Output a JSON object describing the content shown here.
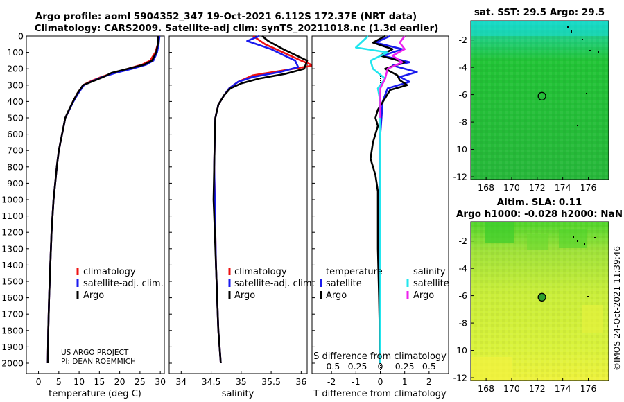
{
  "header": {
    "line1": "Argo profile: aoml 5904352_347 19-Oct-2021 6.112S 172.37E (NRT data)",
    "line2": "Climatology: CARS2009. Satellite-adj clim: synTS_20211018.nc (1.3d earlier)"
  },
  "credit": {
    "project": "US ARGO PROJECT",
    "pi": "PI: DEAN ROEMMICH"
  },
  "stamp": "©IMOS 24-Oct-2021 11:39:46",
  "legend": {
    "clim": "climatology",
    "sat": "satellite-adj. clim.",
    "argo": "Argo",
    "temperature": "temperature",
    "salinity": "salinity",
    "satellite": "satellite"
  },
  "colors": {
    "clim": "#ee1111",
    "sat": "#1a1aee",
    "argo": "#000000",
    "cyan": "#22e6ee",
    "magenta": "#ee22ee"
  },
  "chart_data": [
    {
      "type": "line",
      "title": "",
      "xlabel": "temperature (deg C)",
      "ylabel": "",
      "xlim": [
        -3,
        31
      ],
      "ylim": [
        2050,
        0
      ],
      "xticks": [
        0,
        5,
        10,
        15,
        20,
        25,
        30
      ],
      "yticks": [
        0,
        100,
        200,
        300,
        400,
        500,
        600,
        700,
        800,
        900,
        1000,
        1100,
        1200,
        1300,
        1400,
        1500,
        1600,
        1700,
        1800,
        1900,
        2000
      ],
      "series": [
        {
          "name": "climatology",
          "key": "clim",
          "x": [
            29.6,
            29.4,
            28.8,
            27.5,
            25.5,
            22.0,
            18.5,
            15.5,
            13.0,
            11.0,
            9.6,
            8.5,
            7.6,
            6.6,
            5.8,
            5.0,
            4.5,
            4.1,
            3.7,
            3.2,
            2.9,
            2.6,
            2.4,
            2.3
          ],
          "y": [
            0,
            50,
            100,
            150,
            175,
            200,
            225,
            250,
            275,
            300,
            350,
            400,
            450,
            500,
            600,
            700,
            800,
            900,
            1000,
            1200,
            1400,
            1600,
            1800,
            2000
          ]
        },
        {
          "name": "satellite-adj. clim.",
          "key": "sat",
          "x": [
            29.8,
            29.6,
            29.2,
            28.3,
            26.5,
            23.0,
            19.0,
            15.8,
            13.3,
            11.2,
            9.8,
            8.6,
            7.6,
            6.6,
            5.8,
            5.0,
            4.5,
            4.1,
            3.7,
            3.2,
            2.9,
            2.6,
            2.4,
            2.3
          ],
          "y": [
            0,
            50,
            100,
            150,
            175,
            200,
            225,
            250,
            275,
            300,
            350,
            400,
            450,
            500,
            600,
            700,
            800,
            900,
            1000,
            1200,
            1400,
            1600,
            1800,
            2000
          ]
        },
        {
          "name": "Argo",
          "key": "argo",
          "x": [
            29.5,
            29.4,
            29.0,
            28.0,
            26.0,
            22.0,
            18.0,
            16.0,
            13.5,
            11.0,
            9.6,
            8.5,
            7.5,
            6.6,
            5.8,
            5.0,
            4.5,
            4.1,
            3.7,
            3.2,
            2.9,
            2.6,
            2.4,
            2.3
          ],
          "y": [
            0,
            50,
            100,
            150,
            175,
            200,
            225,
            250,
            275,
            300,
            350,
            400,
            450,
            500,
            600,
            700,
            800,
            900,
            1000,
            1200,
            1400,
            1600,
            1800,
            2000
          ]
        }
      ]
    },
    {
      "type": "line",
      "xlabel": "salinity",
      "xlim": [
        33.8,
        36.1
      ],
      "ylim": [
        2050,
        0
      ],
      "xticks": [
        34,
        34.5,
        35,
        35.5,
        36
      ],
      "series": [
        {
          "name": "climatology",
          "key": "clim",
          "x": [
            35.2,
            35.4,
            35.7,
            36.0,
            36.2,
            35.7,
            35.2,
            34.95,
            34.8,
            34.72,
            34.62,
            34.57,
            34.56,
            34.55,
            34.56,
            34.57,
            34.58,
            34.6,
            34.62,
            34.64,
            34.66
          ],
          "y": [
            0,
            50,
            100,
            150,
            180,
            210,
            240,
            280,
            320,
            360,
            420,
            500,
            600,
            800,
            1000,
            1200,
            1400,
            1600,
            1800,
            1900,
            2000
          ]
        },
        {
          "name": "satellite-adj. clim.",
          "key": "sat",
          "x": [
            35.3,
            35.1,
            35.5,
            35.9,
            35.95,
            35.65,
            35.2,
            34.95,
            34.8,
            34.72,
            34.62,
            34.57,
            34.56,
            34.55,
            34.56,
            34.57,
            34.58,
            34.6,
            34.62,
            34.64,
            34.66
          ],
          "y": [
            0,
            30,
            80,
            150,
            190,
            220,
            250,
            280,
            320,
            360,
            420,
            500,
            600,
            800,
            1000,
            1200,
            1400,
            1600,
            1800,
            1900,
            2000
          ]
        },
        {
          "name": "Argo",
          "key": "argo",
          "x": [
            35.35,
            35.45,
            35.7,
            36.1,
            36.05,
            35.75,
            35.3,
            35.0,
            34.82,
            34.72,
            34.62,
            34.57,
            34.56,
            34.55,
            34.54,
            34.56,
            34.58,
            34.6,
            34.62,
            34.64,
            34.66
          ],
          "y": [
            0,
            30,
            80,
            150,
            200,
            230,
            260,
            290,
            320,
            360,
            420,
            500,
            600,
            800,
            1000,
            1200,
            1400,
            1600,
            1800,
            1900,
            2000
          ]
        }
      ]
    },
    {
      "type": "line",
      "xlabel": "T difference from climatology",
      "xlabel_top": "S difference from climatology",
      "xlim": [
        -2.8,
        2.8
      ],
      "ylim": [
        2050,
        0
      ],
      "xticks": [
        -2,
        -1,
        0,
        1,
        2
      ],
      "top_ticks": [
        -0.5,
        -0.25,
        0,
        0.25,
        0.5
      ],
      "series": [
        {
          "name": "temperature satellite",
          "key": "sat",
          "x": [
            0.4,
            -0.2,
            0.9,
            0.1,
            1.2,
            0.5,
            1.5,
            0.8,
            1.2,
            0.3,
            0.1,
            0.0,
            0.0,
            0.0
          ],
          "y": [
            0,
            40,
            80,
            120,
            160,
            180,
            220,
            250,
            280,
            320,
            400,
            600,
            1000,
            2000
          ]
        },
        {
          "name": "temperature Argo",
          "key": "argo",
          "x": [
            0.2,
            -0.3,
            0.5,
            0.0,
            1.0,
            0.2,
            0.7,
            0.8,
            1.1,
            0.4,
            0.2,
            -0.1,
            -0.2,
            -0.1,
            -0.3,
            -0.4,
            -0.2,
            -0.1,
            -0.1,
            -0.1,
            -0.05,
            0.0
          ],
          "y": [
            0,
            40,
            80,
            120,
            160,
            200,
            240,
            270,
            300,
            330,
            380,
            450,
            500,
            550,
            650,
            750,
            850,
            950,
            1050,
            1300,
            1600,
            2000
          ]
        },
        {
          "name": "salinity satellite",
          "key": "cyan",
          "x": [
            -0.5,
            -1.0,
            0.3,
            -0.4,
            -0.3,
            0.2,
            -0.1,
            0.0,
            0.0,
            0.0
          ],
          "y": [
            0,
            70,
            100,
            150,
            200,
            260,
            320,
            400,
            1000,
            2000
          ]
        },
        {
          "name": "salinity Argo",
          "key": "magenta",
          "x": [
            1.0,
            0.8,
            1.0,
            0.5,
            0.9,
            0.3,
            0.2,
            0.0,
            0.0
          ],
          "y": [
            0,
            40,
            80,
            120,
            160,
            200,
            260,
            320,
            500
          ]
        }
      ]
    }
  ],
  "maps": [
    {
      "title": "sat. SST: 29.5 Argo: 29.5",
      "xticks": [
        168,
        170,
        172,
        174,
        176
      ],
      "yticks": [
        -2,
        -4,
        -6,
        -8,
        -10,
        -12
      ],
      "xlim": [
        166.8,
        177.6
      ],
      "ylim": [
        -12.2,
        -0.6
      ],
      "marker": {
        "lon": 172.37,
        "lat": -6.112
      }
    },
    {
      "title": "Altim. SLA: 0.11",
      "subtitle": "Argo h1000: -0.028 h2000: NaN",
      "xticks": [
        168,
        170,
        172,
        174,
        176
      ],
      "yticks": [
        -2,
        -4,
        -6,
        -8,
        -10,
        -12
      ],
      "xlim": [
        166.8,
        177.6
      ],
      "ylim": [
        -12.2,
        -0.6
      ],
      "marker": {
        "lon": 172.37,
        "lat": -6.112
      }
    }
  ]
}
